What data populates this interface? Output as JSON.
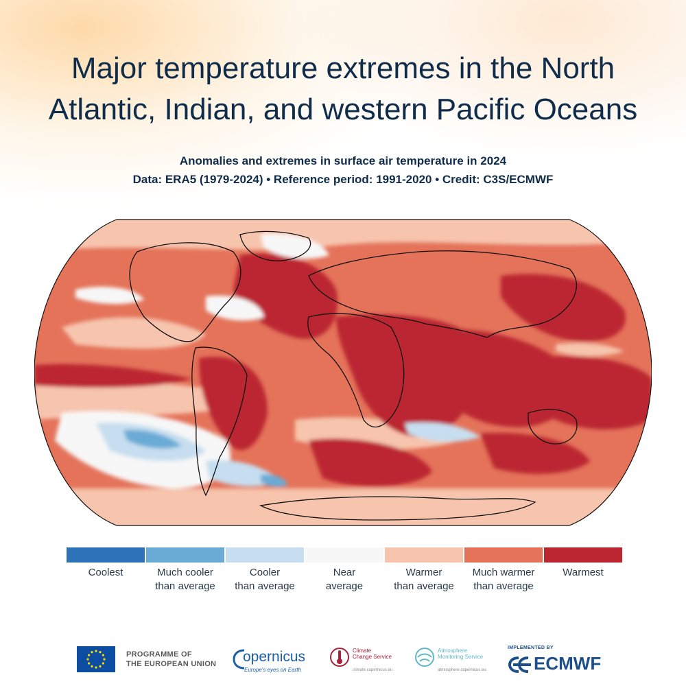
{
  "title": {
    "line1": "Major temperature extremes in the North",
    "line2": "Atlantic, Indian, and western Pacific Oceans"
  },
  "subtitle": {
    "line1": "Anomalies and extremes in surface air temperature in 2024",
    "line2": "Data: ERA5 (1979-2024) • Reference period: 1991-2020 • Credit: C3S/ECMWF"
  },
  "map": {
    "projection": "Robinson (world)",
    "variable": "surface air temperature anomaly category, 2024"
  },
  "legend": {
    "items": [
      {
        "label": "Coolest",
        "color": "#2e72b8"
      },
      {
        "label": "Much cooler\nthan average",
        "color": "#6aabd6"
      },
      {
        "label": "Cooler\nthan average",
        "color": "#c6deef"
      },
      {
        "label": "Near\naverage",
        "color": "#f7f7f7"
      },
      {
        "label": "Warmer\nthan average",
        "color": "#f7c4ad"
      },
      {
        "label": "Much warmer\nthan average",
        "color": "#e4735a"
      },
      {
        "label": "Warmest",
        "color": "#bb2630"
      }
    ]
  },
  "footer": {
    "eu_line1": "PROGRAMME OF",
    "eu_line2": "THE EUROPEAN UNION",
    "copernicus_name": "opernicus",
    "copernicus_tagline": "Europe's eyes on Earth",
    "c3s_name": "Climate\nChange Service",
    "c3s_url": "climate.copernicus.eu",
    "cams_name": "Atmosphere\nMonitoring Service",
    "cams_url": "atmosphere.copernicus.eu",
    "ecmwf_implemented": "IMPLEMENTED BY",
    "ecmwf_name": "ECMWF"
  },
  "colors": {
    "title": "#0f2c4a",
    "warmest": "#bb2630",
    "much_warmer": "#e4735a",
    "warmer": "#f7c4ad",
    "near": "#f7f7f7",
    "cooler": "#c6deef",
    "much_cooler": "#6aabd6",
    "coolest": "#2e72b8"
  }
}
